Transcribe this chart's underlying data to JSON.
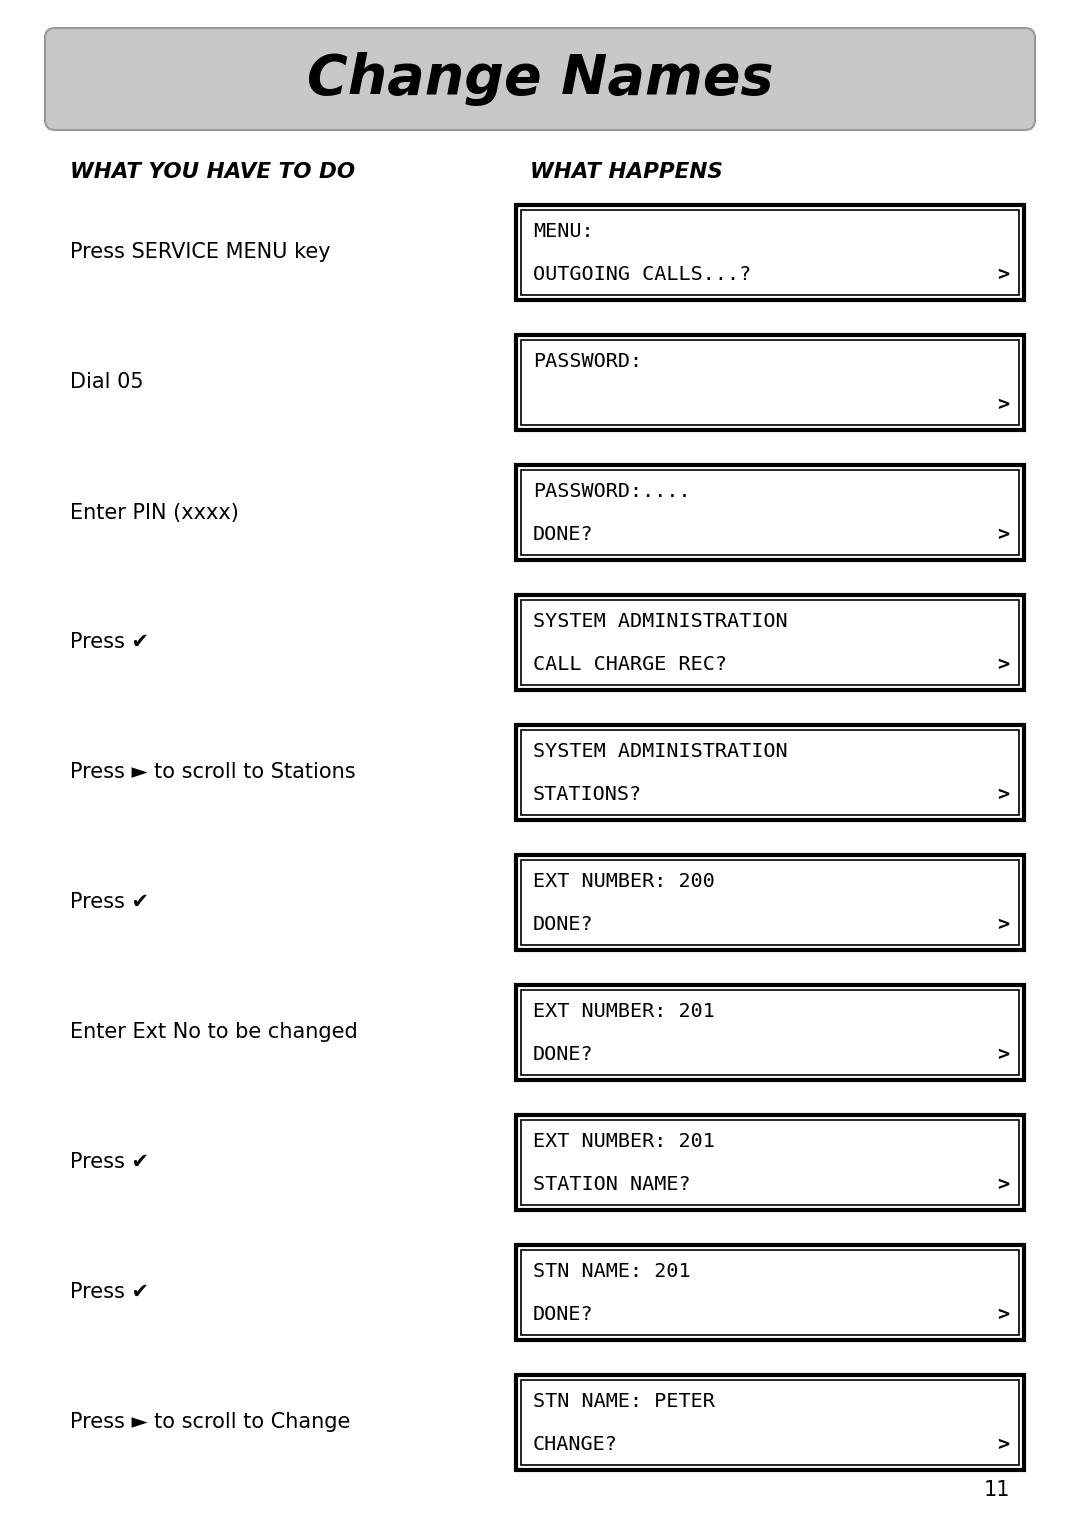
{
  "title": "Change Names",
  "col1_header": "WHAT YOU HAVE TO DO",
  "col2_header": "WHAT HAPPENS",
  "page_number": "11",
  "background_color": "#ffffff",
  "header_bg": "#c8c8c8",
  "rows": [
    {
      "left": "Press SERVICE MENU key",
      "screen_line1": "MENU:",
      "screen_line2": "OUTGOING CALLS...?",
      "has_arrow": true
    },
    {
      "left": "Dial 05",
      "screen_line1": "PASSWORD:",
      "screen_line2": "",
      "has_arrow": true
    },
    {
      "left": "Enter PIN (xxxx)",
      "screen_line1": "PASSWORD:....",
      "screen_line2": "DONE?",
      "has_arrow": true
    },
    {
      "left": "Press ✔",
      "screen_line1": "SYSTEM ADMINISTRATION",
      "screen_line2": "CALL CHARGE REC?",
      "has_arrow": true
    },
    {
      "left": "Press ► to scroll to Stations",
      "screen_line1": "SYSTEM ADMINISTRATION",
      "screen_line2": "STATIONS?",
      "has_arrow": true
    },
    {
      "left": "Press ✔",
      "screen_line1": "EXT NUMBER: 200",
      "screen_line2": "DONE?",
      "has_arrow": true
    },
    {
      "left": "Enter Ext No to be changed",
      "screen_line1": "EXT NUMBER: 201",
      "screen_line2": "DONE?",
      "has_arrow": true
    },
    {
      "left": "Press ✔",
      "screen_line1": "EXT NUMBER: 201",
      "screen_line2": "STATION NAME?",
      "has_arrow": true
    },
    {
      "left": "Press ✔",
      "screen_line1": "STN NAME: 201",
      "screen_line2": "DONE?",
      "has_arrow": true
    },
    {
      "left": "Press ► to scroll to Change",
      "screen_line1": "STN NAME: PETER",
      "screen_line2": "CHANGE?",
      "has_arrow": true
    }
  ]
}
